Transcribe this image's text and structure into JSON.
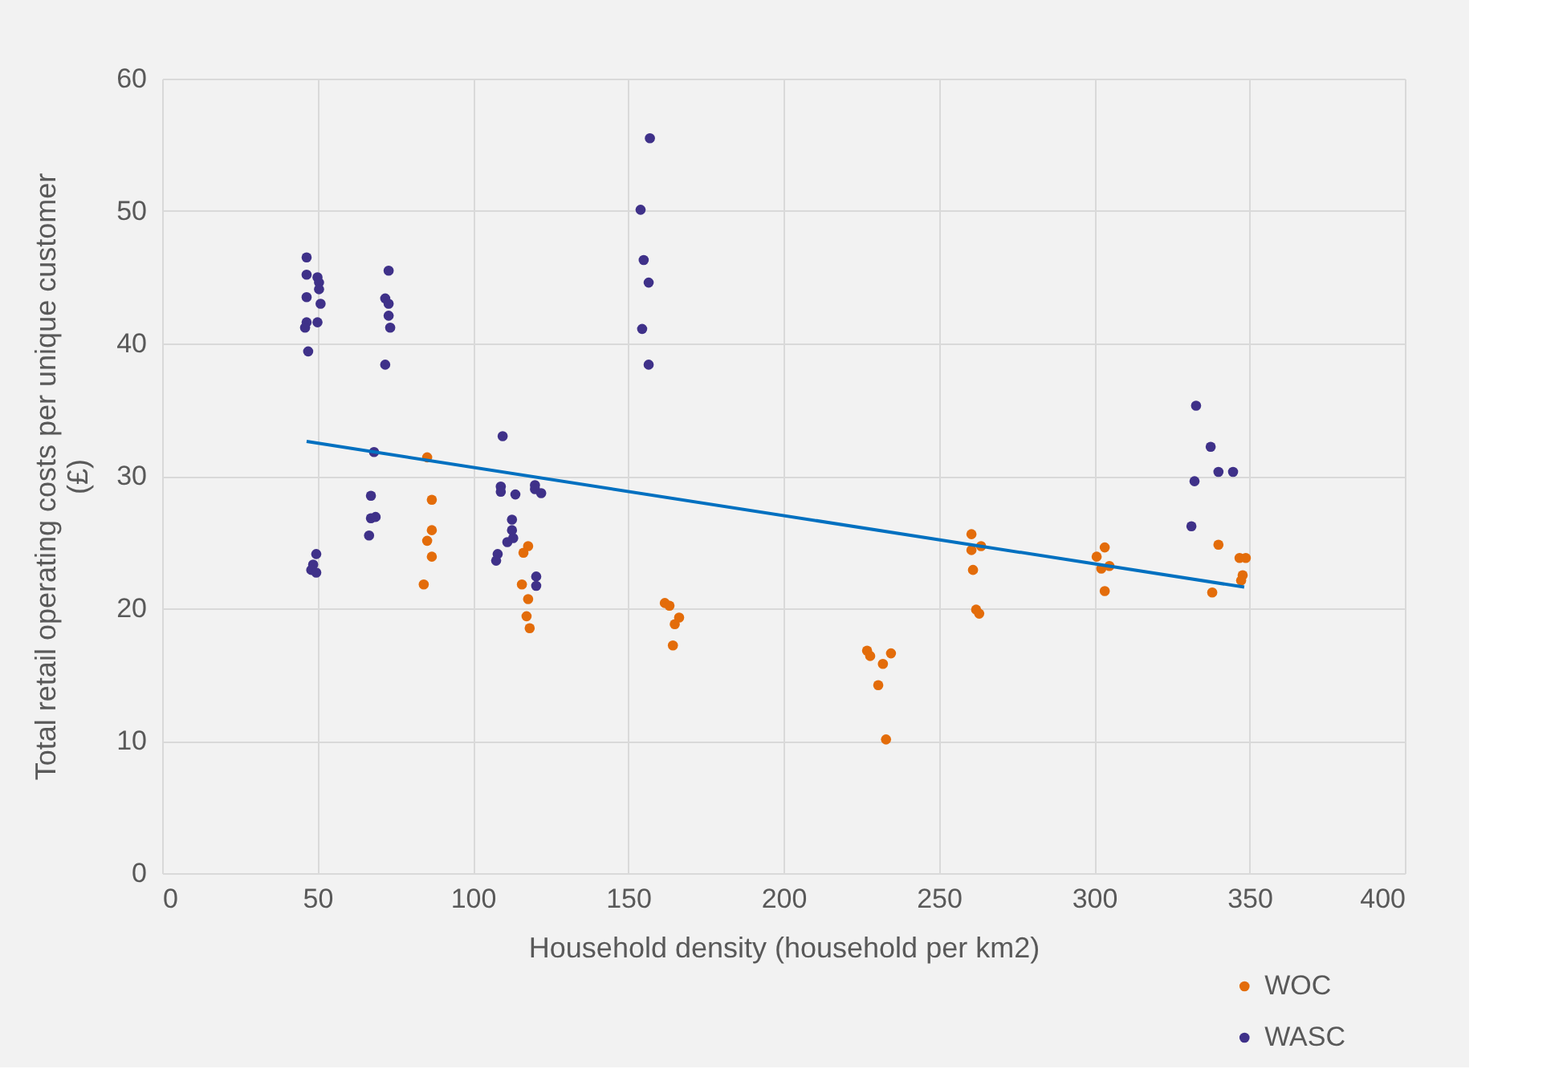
{
  "chart_data": {
    "type": "scatter",
    "xlabel": "Household density (household per km2)",
    "ylabel": "Total retail operating costs per unique customer (£)",
    "xlim": [
      0,
      400
    ],
    "xticks": [
      0,
      50,
      100,
      150,
      200,
      250,
      300,
      350,
      400
    ],
    "ylim": [
      0,
      60
    ],
    "yticks": [
      0,
      10,
      20,
      30,
      40,
      50,
      60
    ],
    "grid": true,
    "legend": "bottom right",
    "marker": "circle",
    "series": [
      {
        "name": "WOC",
        "color": "#e36c0a",
        "x": [
          85.3,
          86.8,
          86.8,
          85.3,
          86.8,
          84.2,
          117.8,
          116.3,
          115.8,
          117.8,
          117.3,
          118.3,
          161.8,
          163.3,
          166.4,
          165,
          164.4,
          226.9,
          227.9,
          234.6,
          232,
          230.5,
          233,
          260.5,
          263.6,
          260.5,
          261,
          262,
          263,
          303.4,
          300.8,
          302.3,
          304.9,
          303.4,
          340,
          346.8,
          348.8,
          347.8,
          347.3,
          338
        ],
        "values": [
          31.4,
          28.2,
          25.9,
          25.1,
          23.9,
          21.8,
          24.7,
          24.2,
          21.8,
          20.7,
          19.4,
          18.5,
          20.4,
          20.2,
          19.3,
          18.8,
          17.2,
          16.8,
          16.4,
          16.6,
          15.8,
          14.2,
          10.1,
          25.6,
          24.7,
          24.4,
          22.9,
          19.9,
          19.6,
          24.6,
          23.9,
          23,
          23.2,
          21.3,
          24.8,
          23.8,
          23.8,
          22.5,
          22.1,
          21.2
        ]
      },
      {
        "name": "WASC",
        "color": "#3f3189",
        "x": [
          46.5,
          46.5,
          46.5,
          46.5,
          46,
          47,
          50,
          50.5,
          50.5,
          51,
          50,
          49.6,
          48.6,
          48,
          49.6,
          72.9,
          71.8,
          72.9,
          72.9,
          73.4,
          71.8,
          68.2,
          67.2,
          67.2,
          68.7,
          66.6,
          109.6,
          109,
          109,
          113.7,
          112.6,
          112.6,
          113,
          111.1,
          108,
          107.5,
          120,
          120,
          122,
          120.4,
          120.4,
          157,
          154,
          155,
          156.6,
          154.5,
          156.6,
          332.8,
          337.5,
          340,
          344.7,
          332.3,
          331.3
        ],
        "values": [
          46.5,
          45.2,
          43.5,
          41.6,
          41.2,
          39.4,
          45,
          44.6,
          44.1,
          43,
          41.6,
          24.1,
          23.3,
          22.9,
          22.7,
          45.5,
          43.4,
          43,
          42.1,
          41.2,
          38.4,
          31.8,
          28.5,
          26.8,
          26.9,
          25.5,
          33,
          29.2,
          28.8,
          28.6,
          26.7,
          25.9,
          25.3,
          25,
          24.1,
          23.6,
          29.3,
          29,
          28.7,
          22.4,
          21.7,
          55.5,
          50.1,
          46.3,
          44.6,
          41.1,
          38.4,
          35.3,
          32.2,
          30.3,
          30.3,
          29.6,
          26.2
        ]
      },
      {
        "type": "line",
        "marker": "none",
        "color": "#0070c0",
        "x": [
          46.5,
          348.3
        ],
        "values": [
          32.6,
          21.6
        ]
      }
    ]
  }
}
